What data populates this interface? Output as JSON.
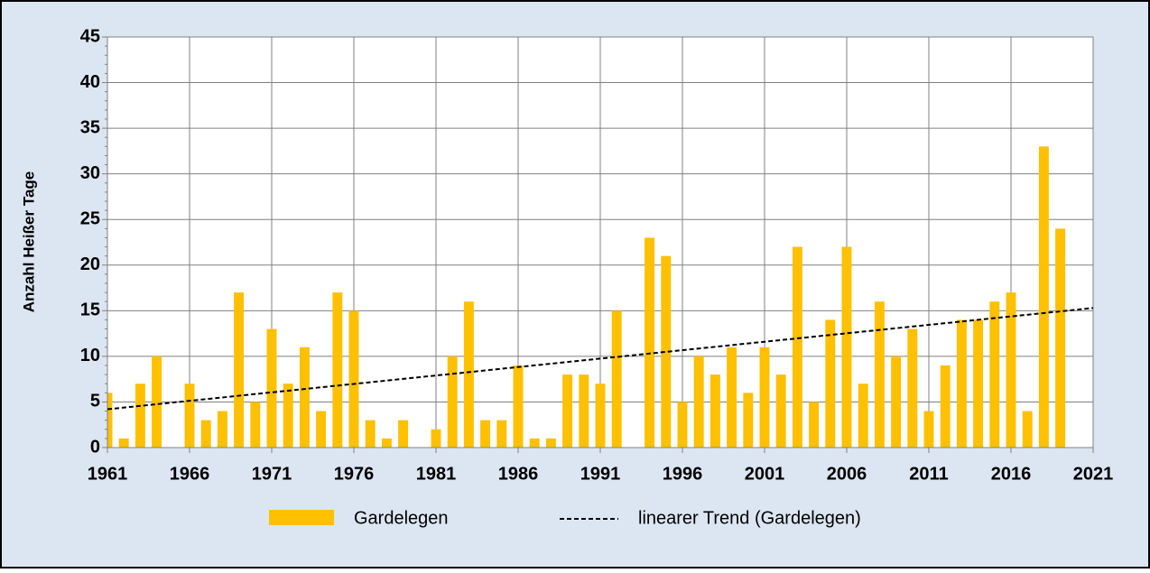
{
  "chart_data": {
    "type": "bar",
    "ylabel": "Anzahl Heißer Tage",
    "x": [
      1961,
      1962,
      1963,
      1964,
      1965,
      1966,
      1967,
      1968,
      1969,
      1970,
      1971,
      1972,
      1973,
      1974,
      1975,
      1976,
      1977,
      1978,
      1979,
      1980,
      1981,
      1982,
      1983,
      1984,
      1985,
      1986,
      1987,
      1988,
      1989,
      1990,
      1991,
      1992,
      1993,
      1994,
      1995,
      1996,
      1997,
      1998,
      1999,
      2000,
      2001,
      2002,
      2003,
      2004,
      2005,
      2006,
      2007,
      2008,
      2009,
      2010,
      2011,
      2012,
      2013,
      2014,
      2015,
      2016,
      2017,
      2018,
      2019
    ],
    "series": [
      {
        "name": "Gardelegen",
        "color": "#ffc000",
        "values": [
          6,
          1,
          7,
          10,
          0,
          7,
          3,
          4,
          17,
          5,
          13,
          7,
          11,
          4,
          17,
          15,
          3,
          1,
          3,
          0,
          2,
          10,
          16,
          3,
          3,
          9,
          1,
          1,
          8,
          8,
          7,
          15,
          0,
          23,
          21,
          5,
          10,
          8,
          11,
          6,
          11,
          8,
          22,
          5,
          14,
          22,
          7,
          16,
          10,
          13,
          4,
          9,
          14,
          14,
          16,
          17,
          4,
          33,
          24
        ]
      }
    ],
    "trend": {
      "name": "linearer Trend (Gardelegen)",
      "color": "#000000",
      "x": [
        1961,
        2021
      ],
      "values": [
        4.2,
        15.3
      ]
    },
    "xlim": [
      1961,
      2021
    ],
    "xticks": [
      1961,
      1966,
      1971,
      1976,
      1981,
      1986,
      1991,
      1996,
      2001,
      2006,
      2011,
      2016,
      2021
    ],
    "ylim": [
      0,
      45
    ],
    "yticks": [
      0,
      5,
      10,
      15,
      20,
      25,
      30,
      35,
      40,
      45
    ],
    "grid": true
  }
}
